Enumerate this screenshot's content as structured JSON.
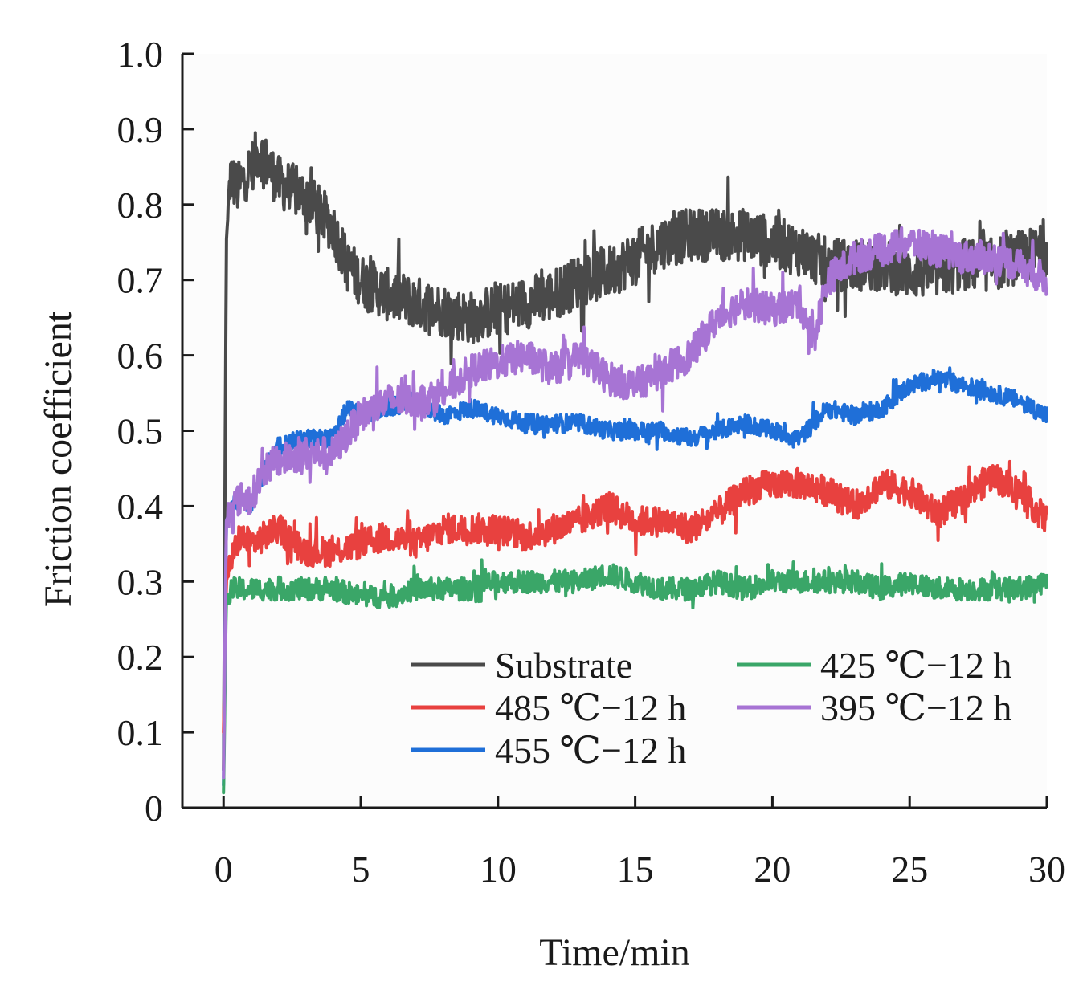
{
  "chart_data": {
    "type": "line",
    "title": "",
    "xlabel": "Time/min",
    "ylabel": "Friction coefficient",
    "xlim": [
      -1.5,
      30
    ],
    "ylim": [
      0,
      1.0
    ],
    "xticks": [
      0,
      5,
      10,
      15,
      20,
      25,
      30
    ],
    "yticks": [
      0,
      0.1,
      0.2,
      0.3,
      0.4,
      0.5,
      0.6,
      0.7,
      0.8,
      0.9,
      1.0
    ],
    "xtick_labels": [
      "0",
      "5",
      "10",
      "15",
      "20",
      "25",
      "30"
    ],
    "ytick_labels": [
      "0",
      "0.1",
      "0.2",
      "0.3",
      "0.4",
      "0.5",
      "0.6",
      "0.7",
      "0.8",
      "0.9",
      "1.0"
    ],
    "grid": false,
    "legend_position": "bottom-right",
    "series": [
      {
        "name": "Substrate",
        "color": "#4a4a4a",
        "noise": 0.035,
        "x": [
          0,
          0.1,
          0.25,
          0.5,
          1.0,
          1.3,
          2,
          3,
          4,
          4.5,
          5,
          6,
          7,
          8,
          9,
          10,
          11,
          12,
          13,
          14,
          15,
          16,
          17,
          18,
          19,
          20,
          21,
          22,
          23,
          24,
          25,
          26,
          27,
          28,
          29,
          30
        ],
        "y": [
          0.05,
          0.75,
          0.84,
          0.82,
          0.85,
          0.87,
          0.83,
          0.81,
          0.77,
          0.72,
          0.7,
          0.68,
          0.67,
          0.66,
          0.65,
          0.66,
          0.67,
          0.68,
          0.7,
          0.71,
          0.73,
          0.75,
          0.76,
          0.76,
          0.76,
          0.75,
          0.74,
          0.72,
          0.72,
          0.72,
          0.71,
          0.71,
          0.72,
          0.72,
          0.73,
          0.74
        ]
      },
      {
        "name": "485 ℃−12 h",
        "color": "#e8413f",
        "noise": 0.02,
        "x": [
          0,
          0.1,
          0.3,
          0.6,
          1,
          2,
          3,
          4,
          5,
          6,
          7,
          8,
          9,
          10,
          11,
          12,
          13,
          14,
          15,
          16,
          17,
          18,
          19,
          20,
          21,
          22,
          23,
          24,
          25,
          26,
          27,
          28,
          29,
          30
        ],
        "y": [
          0.1,
          0.3,
          0.33,
          0.36,
          0.35,
          0.37,
          0.34,
          0.34,
          0.35,
          0.36,
          0.35,
          0.37,
          0.37,
          0.37,
          0.36,
          0.37,
          0.38,
          0.4,
          0.38,
          0.38,
          0.37,
          0.39,
          0.42,
          0.43,
          0.43,
          0.42,
          0.4,
          0.43,
          0.42,
          0.39,
          0.41,
          0.44,
          0.42,
          0.38
        ]
      },
      {
        "name": "455 ℃−12 h",
        "color": "#1f6fd8",
        "noise": 0.012,
        "x": [
          0,
          0.1,
          0.3,
          0.6,
          1,
          1.5,
          2,
          3,
          4,
          4.5,
          5,
          6,
          7,
          8,
          9,
          10,
          11,
          12,
          13,
          14,
          15,
          16,
          17,
          18,
          19,
          20,
          21,
          22,
          23,
          24,
          25,
          26,
          27,
          28,
          29,
          30
        ],
        "y": [
          0.03,
          0.38,
          0.4,
          0.41,
          0.4,
          0.45,
          0.48,
          0.49,
          0.49,
          0.53,
          0.52,
          0.53,
          0.54,
          0.52,
          0.53,
          0.52,
          0.51,
          0.51,
          0.51,
          0.5,
          0.5,
          0.5,
          0.49,
          0.5,
          0.51,
          0.5,
          0.49,
          0.53,
          0.52,
          0.53,
          0.56,
          0.57,
          0.56,
          0.55,
          0.54,
          0.52
        ]
      },
      {
        "name": "425 ℃−12 h",
        "color": "#3aa668",
        "noise": 0.015,
        "x": [
          0,
          0.1,
          0.3,
          1,
          2,
          3,
          4,
          5,
          6,
          7,
          8,
          9,
          10,
          11,
          12,
          13,
          14,
          15,
          16,
          17,
          18,
          19,
          20,
          21,
          22,
          23,
          24,
          25,
          26,
          27,
          28,
          29,
          30
        ],
        "y": [
          0.02,
          0.28,
          0.29,
          0.29,
          0.29,
          0.29,
          0.29,
          0.28,
          0.28,
          0.29,
          0.29,
          0.29,
          0.3,
          0.3,
          0.3,
          0.3,
          0.31,
          0.3,
          0.29,
          0.29,
          0.3,
          0.29,
          0.3,
          0.3,
          0.3,
          0.3,
          0.29,
          0.3,
          0.29,
          0.29,
          0.29,
          0.29,
          0.3
        ]
      },
      {
        "name": "395 ℃−12 h",
        "color": "#a774d4",
        "noise": 0.022,
        "x": [
          0,
          0.1,
          0.3,
          0.6,
          1,
          1.5,
          2,
          3,
          4,
          5,
          6,
          7,
          8,
          9,
          10,
          11,
          12,
          13,
          14,
          15,
          16,
          17,
          18,
          19,
          20,
          21,
          21.5,
          22,
          23,
          24,
          25,
          26,
          27,
          28,
          29,
          30
        ],
        "y": [
          0.04,
          0.38,
          0.4,
          0.41,
          0.41,
          0.45,
          0.46,
          0.47,
          0.47,
          0.52,
          0.54,
          0.54,
          0.55,
          0.58,
          0.59,
          0.6,
          0.58,
          0.6,
          0.57,
          0.56,
          0.58,
          0.6,
          0.65,
          0.67,
          0.66,
          0.67,
          0.62,
          0.7,
          0.73,
          0.74,
          0.75,
          0.74,
          0.73,
          0.73,
          0.72,
          0.7
        ]
      }
    ],
    "legend_columns": [
      [
        "Substrate",
        "485 ℃−12 h",
        "455 ℃−12 h"
      ],
      [
        "425 ℃−12 h",
        "395 ℃−12 h"
      ]
    ]
  }
}
